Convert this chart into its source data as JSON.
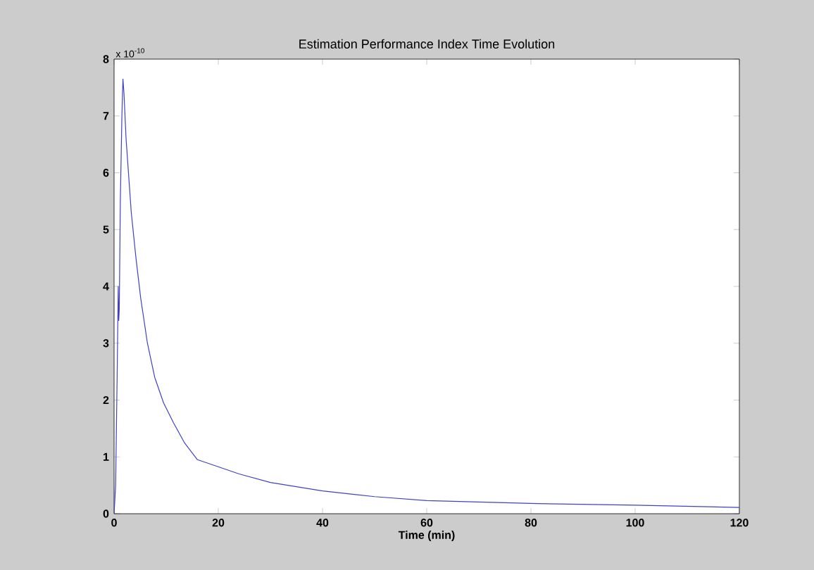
{
  "chart_data": {
    "type": "line",
    "title": "Estimation Performance Index Time Evolution",
    "xlabel": "Time (min)",
    "annotations": [
      "x 10$^{-10}$"
    ],
    "x": [
      0,
      0.3,
      0.6,
      0.8,
      0.9,
      1.0,
      1.2,
      1.5,
      1.7,
      1.9,
      2.3,
      3.3,
      4.2,
      5.1,
      6.4,
      7.8,
      9.5,
      11.4,
      13.5,
      16,
      18.6,
      24,
      30,
      40,
      50,
      60,
      80,
      100,
      120
    ],
    "series": [
      {
        "color": "#4040c8",
        "values": [
          0,
          0.5,
          2.5,
          4.0,
          3.4,
          3.6,
          5.5,
          7.0,
          7.65,
          7.4,
          6.6,
          5.3,
          4.5,
          3.8,
          3.0,
          2.4,
          1.95,
          1.6,
          1.25,
          0.95,
          0.87,
          0.7,
          0.55,
          0.4,
          0.3,
          0.23,
          0.18,
          0.15,
          0.11
        ]
      }
    ],
    "xlim": [
      0,
      120
    ],
    "ylim": [
      0,
      8
    ],
    "xticks": [
      0,
      20,
      40,
      60,
      80,
      100,
      120
    ],
    "yticks": [
      0,
      1,
      2,
      3,
      4,
      5,
      6,
      7,
      8
    ],
    "grid": false,
    "marker": "none",
    "line_style": "solid"
  }
}
